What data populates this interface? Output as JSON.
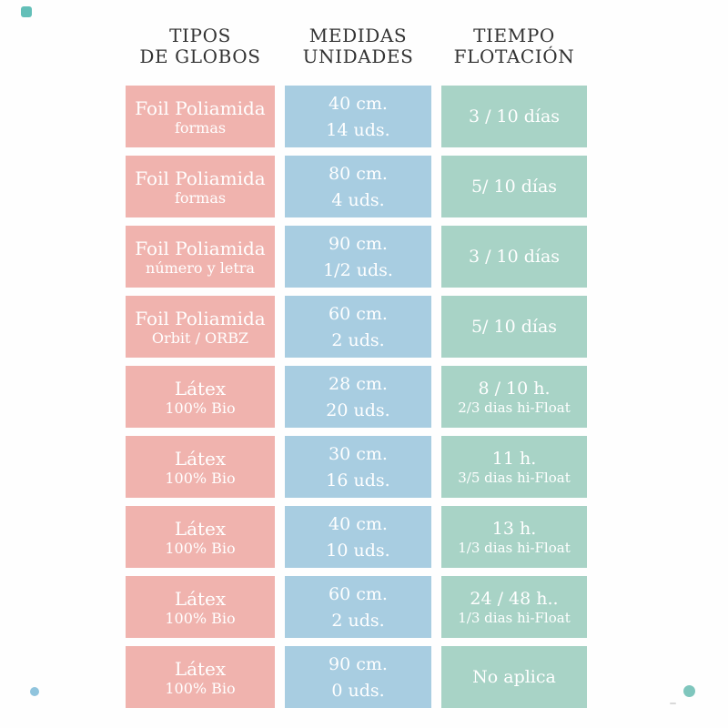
{
  "colors": {
    "pink": "#f0b3ae",
    "blue": "#a8cde1",
    "green": "#a8d3c6",
    "header_text": "#333333",
    "cell_text": "#ffffff",
    "dot_teal": "#63bfb8",
    "dot_blue": "#90c4dd",
    "dot_teal2": "#7fc6bd"
  },
  "table": {
    "headers": [
      {
        "line1": "TIPOS",
        "line2": "DE GLOBOS"
      },
      {
        "line1": "MEDIDAS",
        "line2": "UNIDADES"
      },
      {
        "line1": "TIEMPO",
        "line2": "FLOTACIÓN"
      }
    ],
    "rows": [
      {
        "tipo": [
          "Foil Poliamida",
          "formas"
        ],
        "medidas": [
          "40 cm.",
          "14 uds."
        ],
        "tiempo": [
          "3 / 10 días",
          ""
        ]
      },
      {
        "tipo": [
          "Foil Poliamida",
          "formas"
        ],
        "medidas": [
          "80 cm.",
          "4 uds."
        ],
        "tiempo": [
          "5/ 10 días",
          ""
        ]
      },
      {
        "tipo": [
          "Foil Poliamida",
          "número y letra"
        ],
        "medidas": [
          "90 cm.",
          "1/2 uds."
        ],
        "tiempo": [
          "3 / 10 días",
          ""
        ]
      },
      {
        "tipo": [
          "Foil Poliamida",
          "Orbit / ORBZ"
        ],
        "medidas": [
          "60 cm.",
          "2 uds."
        ],
        "tiempo": [
          "5/ 10 días",
          ""
        ]
      },
      {
        "tipo": [
          "Látex",
          "100% Bio"
        ],
        "medidas": [
          "28 cm.",
          "20 uds."
        ],
        "tiempo": [
          "8 / 10 h.",
          "2/3 dias hi-Float"
        ]
      },
      {
        "tipo": [
          "Látex",
          "100% Bio"
        ],
        "medidas": [
          "30 cm.",
          "16 uds."
        ],
        "tiempo": [
          "11 h.",
          "3/5 dias hi-Float"
        ]
      },
      {
        "tipo": [
          "Látex",
          "100% Bio"
        ],
        "medidas": [
          "40 cm.",
          "10 uds."
        ],
        "tiempo": [
          "13 h.",
          "1/3 dias hi-Float"
        ]
      },
      {
        "tipo": [
          "Látex",
          "100% Bio"
        ],
        "medidas": [
          "60 cm.",
          "2 uds."
        ],
        "tiempo": [
          "24 / 48 h..",
          "1/3 dias hi-Float"
        ]
      },
      {
        "tipo": [
          "Látex",
          "100% Bio"
        ],
        "medidas": [
          "90 cm.",
          "0 uds."
        ],
        "tiempo": [
          "No aplica",
          ""
        ]
      }
    ]
  },
  "chart_data": {
    "type": "table",
    "columns": [
      "TIPOS DE GLOBOS",
      "MEDIDAS UNIDADES",
      "TIEMPO FLOTACIÓN"
    ],
    "rows": [
      [
        "Foil Poliamida formas",
        "40 cm. 14 uds.",
        "3 / 10 días"
      ],
      [
        "Foil Poliamida formas",
        "80 cm. 4 uds.",
        "5/ 10 días"
      ],
      [
        "Foil Poliamida número y letra",
        "90 cm. 1/2 uds.",
        "3 / 10 días"
      ],
      [
        "Foil Poliamida Orbit / ORBZ",
        "60 cm. 2 uds.",
        "5/ 10 días"
      ],
      [
        "Látex 100% Bio",
        "28 cm. 20 uds.",
        "8 / 10 h. 2/3 dias hi-Float"
      ],
      [
        "Látex 100% Bio",
        "30 cm. 16 uds.",
        "11 h. 3/5 dias hi-Float"
      ],
      [
        "Látex 100% Bio",
        "40 cm. 10 uds.",
        "13 h. 1/3 dias hi-Float"
      ],
      [
        "Látex 100% Bio",
        "60 cm. 2 uds.",
        "24 / 48 h.. 1/3 dias hi-Float"
      ],
      [
        "Látex 100% Bio",
        "90 cm. 0 uds.",
        "No aplica"
      ]
    ],
    "title": "",
    "legend": false,
    "grid": false
  }
}
